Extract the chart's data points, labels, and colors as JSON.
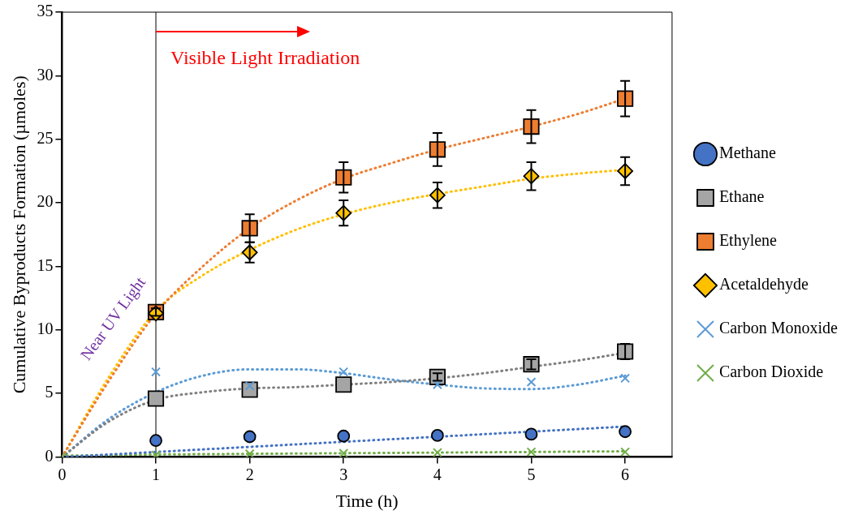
{
  "chart_data": {
    "type": "scatter",
    "xlabel": "Time (h)",
    "ylabel": "Cumulative Byproducts Formation (µmoles)",
    "xlim": [
      0,
      6.5
    ],
    "xticks": [
      0,
      1,
      2,
      3,
      4,
      5,
      6
    ],
    "ylim": [
      0,
      35
    ],
    "yticks": [
      0,
      5,
      10,
      15,
      20,
      25,
      30,
      35
    ],
    "grid": false,
    "legend": "right",
    "ref_lines": [
      {
        "axis": "x",
        "value": 1,
        "color": "#000000"
      }
    ],
    "annotations": [
      {
        "text": "Visible Light Irradiation",
        "x": 1,
        "y": 33.5
      },
      "Near UV Light"
    ],
    "x": [
      0,
      1,
      2,
      3,
      4,
      5,
      6
    ],
    "series": [
      {
        "name": "Methane",
        "type": "scatter",
        "marker": "circle",
        "color": "#4472c4",
        "values": [
          null,
          1.3,
          1.6,
          1.65,
          1.7,
          1.8,
          2.0
        ]
      },
      {
        "name": "Ethane",
        "type": "scatter",
        "marker": "square",
        "color": "#a5a5a5",
        "values": [
          null,
          4.6,
          5.3,
          5.7,
          6.3,
          7.3,
          8.3
        ],
        "errors": [
          null,
          null,
          null,
          null,
          0.3,
          0.4,
          0.6
        ]
      },
      {
        "name": "Ethylene",
        "type": "scatter",
        "marker": "square",
        "color": "#ed7d31",
        "values": [
          null,
          11.4,
          18.0,
          22.0,
          24.2,
          26.0,
          28.2
        ],
        "errors": [
          null,
          0.3,
          1.1,
          1.2,
          1.3,
          1.3,
          1.4
        ]
      },
      {
        "name": "Acetaldehyde",
        "type": "scatter",
        "marker": "diamond",
        "color": "#ffc000",
        "values": [
          null,
          11.3,
          16.1,
          19.2,
          20.6,
          22.1,
          22.5
        ],
        "errors": [
          null,
          null,
          0.8,
          1.0,
          1.0,
          1.1,
          1.1
        ]
      },
      {
        "name": "Carbon Monoxide",
        "type": "scatter",
        "marker": "cross",
        "color": "#5b9bd5",
        "values": [
          null,
          6.7,
          5.6,
          6.7,
          5.7,
          5.9,
          6.2
        ]
      },
      {
        "name": "Carbon Dioxide",
        "type": "scatter",
        "marker": "cross",
        "color": "#70ad47",
        "values": [
          0,
          0.15,
          0.25,
          0.3,
          0.35,
          0.4,
          0.4
        ]
      },
      {
        "type": "line",
        "marker": "none",
        "line_style": "dotted",
        "color": "#4472c4",
        "x": [
          0,
          1,
          2,
          3,
          4,
          5,
          6
        ],
        "values": [
          0,
          0.4,
          0.8,
          1.2,
          1.6,
          2.0,
          2.4
        ]
      },
      {
        "type": "line",
        "marker": "none",
        "line_style": "dotted",
        "color": "#808080",
        "x": [
          0,
          0.5,
          1,
          1.5,
          2,
          2.5,
          3,
          3.5,
          4,
          4.5,
          5,
          5.5,
          6
        ],
        "values": [
          0,
          2.8,
          4.5,
          5.1,
          5.4,
          5.5,
          5.7,
          5.9,
          6.2,
          6.6,
          7.1,
          7.6,
          8.2
        ]
      },
      {
        "type": "line",
        "marker": "none",
        "line_style": "dotted",
        "color": "#ed7d31",
        "x": [
          0,
          0.5,
          1,
          1.5,
          2,
          2.5,
          3,
          3.5,
          4,
          4.5,
          5,
          5.5,
          6
        ],
        "values": [
          0,
          6,
          11.3,
          15,
          18,
          20.2,
          21.9,
          23.1,
          24.2,
          25.1,
          26,
          27,
          28.2
        ]
      },
      {
        "type": "line",
        "marker": "none",
        "line_style": "dotted",
        "color": "#ffc000",
        "x": [
          0,
          0.5,
          1,
          1.5,
          2,
          2.5,
          3,
          3.5,
          4,
          4.5,
          5,
          5.5,
          6
        ],
        "values": [
          0,
          6.3,
          11.5,
          14.3,
          16.3,
          17.9,
          19.1,
          20,
          20.7,
          21.3,
          21.9,
          22.3,
          22.6
        ]
      },
      {
        "type": "line",
        "marker": "none",
        "line_style": "dotted",
        "color": "#5b9bd5",
        "x": [
          0,
          0.5,
          1,
          1.5,
          2,
          2.5,
          3,
          3.5,
          4,
          4.5,
          5,
          5.5,
          6
        ],
        "values": [
          0,
          3,
          5.1,
          6.4,
          6.9,
          6.9,
          6.6,
          6.1,
          5.7,
          5.4,
          5.35,
          5.7,
          6.4
        ]
      },
      {
        "type": "line",
        "marker": "none",
        "line_style": "dotted",
        "color": "#70ad47",
        "x": [
          0,
          1,
          2,
          3,
          4,
          5,
          6
        ],
        "values": [
          0.1,
          0.2,
          0.25,
          0.3,
          0.35,
          0.4,
          0.45
        ]
      }
    ]
  }
}
